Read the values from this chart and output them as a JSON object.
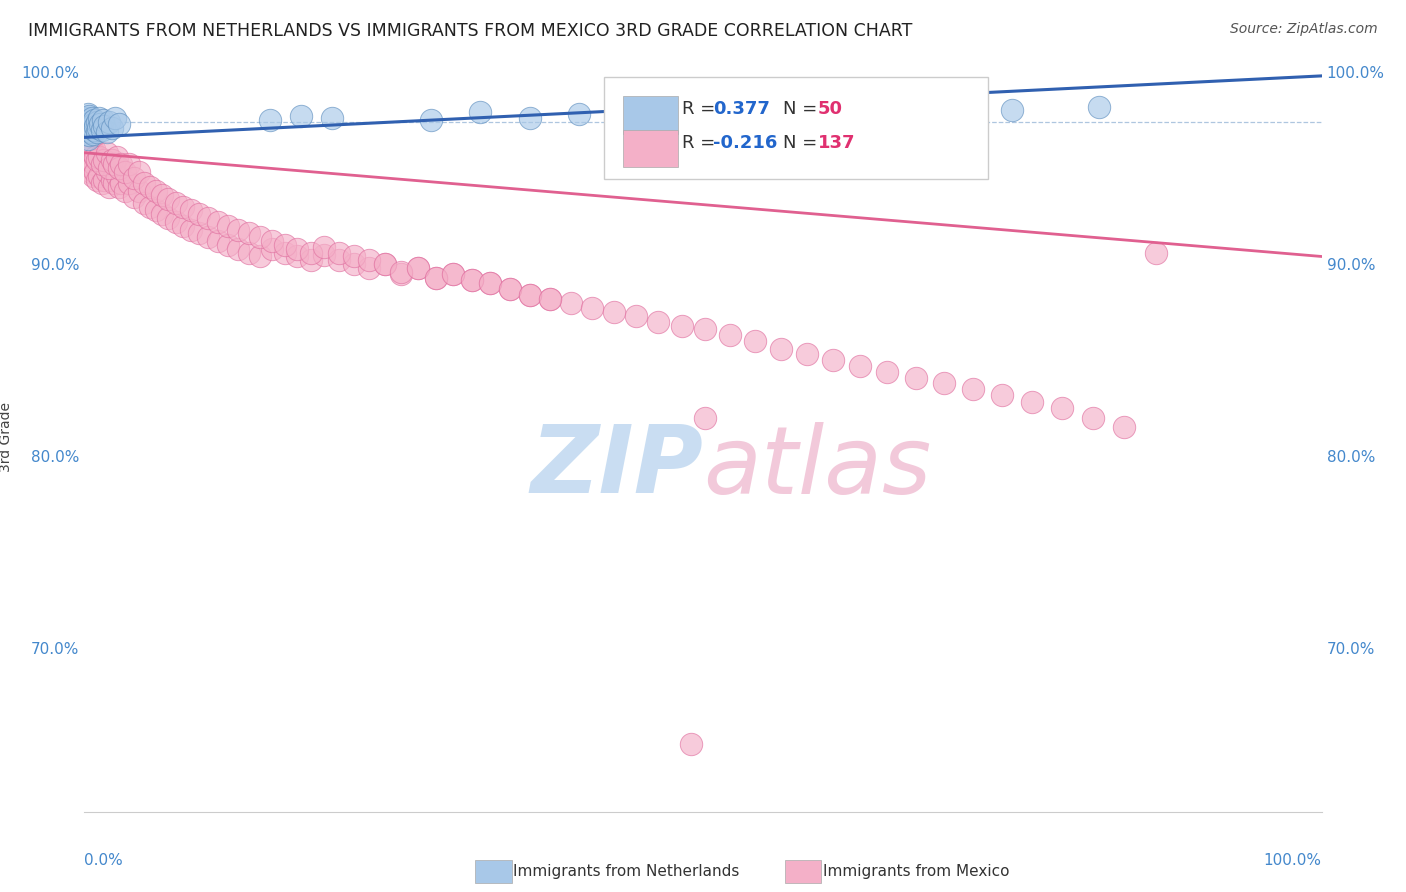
{
  "title": "IMMIGRANTS FROM NETHERLANDS VS IMMIGRANTS FROM MEXICO 3RD GRADE CORRELATION CHART",
  "source": "Source: ZipAtlas.com",
  "ylabel": "3rd Grade",
  "blue_color": "#a8c8e8",
  "pink_color": "#f4b0c8",
  "blue_edge_color": "#6090c0",
  "pink_edge_color": "#e070a0",
  "blue_line_color": "#3060b0",
  "pink_line_color": "#e06090",
  "title_color": "#222222",
  "watermark_zip_color": "#c0d8f0",
  "watermark_atlas_color": "#f0c0d4",
  "tick_color": "#4488cc",
  "xlim": [
    0.0,
    1.0
  ],
  "ylim": [
    0.615,
    1.005
  ],
  "blue_trendline_x": [
    0.0,
    1.0
  ],
  "blue_trendline_y": [
    0.966,
    0.998
  ],
  "pink_trendline_x": [
    0.0,
    1.0
  ],
  "pink_trendline_y": [
    0.958,
    0.904
  ],
  "dashed_line_y": 0.974,
  "blue_scatter_x": [
    0.001,
    0.001,
    0.002,
    0.002,
    0.002,
    0.003,
    0.003,
    0.003,
    0.003,
    0.004,
    0.004,
    0.004,
    0.005,
    0.005,
    0.006,
    0.006,
    0.007,
    0.007,
    0.008,
    0.008,
    0.009,
    0.01,
    0.01,
    0.011,
    0.012,
    0.013,
    0.014,
    0.015,
    0.016,
    0.018,
    0.02,
    0.022,
    0.025,
    0.028,
    0.15,
    0.175,
    0.2,
    0.28,
    0.32,
    0.36,
    0.4,
    0.44,
    0.48,
    0.52,
    0.56,
    0.6,
    0.65,
    0.7,
    0.75,
    0.82
  ],
  "blue_scatter_y": [
    0.97,
    0.975,
    0.968,
    0.972,
    0.976,
    0.965,
    0.97,
    0.974,
    0.978,
    0.967,
    0.972,
    0.977,
    0.969,
    0.974,
    0.971,
    0.976,
    0.968,
    0.973,
    0.97,
    0.975,
    0.972,
    0.969,
    0.974,
    0.971,
    0.976,
    0.973,
    0.97,
    0.975,
    0.972,
    0.969,
    0.974,
    0.971,
    0.976,
    0.973,
    0.975,
    0.977,
    0.976,
    0.975,
    0.979,
    0.976,
    0.978,
    0.977,
    0.98,
    0.978,
    0.976,
    0.979,
    0.98,
    0.981,
    0.98,
    0.982
  ],
  "pink_scatter_x": [
    0.001,
    0.002,
    0.003,
    0.004,
    0.005,
    0.006,
    0.007,
    0.008,
    0.009,
    0.01,
    0.012,
    0.014,
    0.016,
    0.018,
    0.02,
    0.022,
    0.024,
    0.026,
    0.028,
    0.03,
    0.033,
    0.036,
    0.04,
    0.044,
    0.048,
    0.053,
    0.058,
    0.063,
    0.068,
    0.074,
    0.08,
    0.086,
    0.093,
    0.1,
    0.108,
    0.116,
    0.124,
    0.133,
    0.142,
    0.152,
    0.162,
    0.172,
    0.183,
    0.194,
    0.206,
    0.218,
    0.23,
    0.243,
    0.256,
    0.27,
    0.284,
    0.298,
    0.313,
    0.328,
    0.344,
    0.36,
    0.376,
    0.393,
    0.41,
    0.428,
    0.446,
    0.464,
    0.483,
    0.502,
    0.502,
    0.522,
    0.542,
    0.563,
    0.584,
    0.605,
    0.627,
    0.649,
    0.672,
    0.695,
    0.718,
    0.742,
    0.766,
    0.79,
    0.815,
    0.84,
    0.001,
    0.002,
    0.003,
    0.004,
    0.005,
    0.006,
    0.007,
    0.008,
    0.009,
    0.01,
    0.012,
    0.014,
    0.016,
    0.018,
    0.02,
    0.022,
    0.024,
    0.026,
    0.028,
    0.03,
    0.033,
    0.036,
    0.04,
    0.044,
    0.048,
    0.053,
    0.058,
    0.063,
    0.068,
    0.074,
    0.08,
    0.086,
    0.093,
    0.1,
    0.108,
    0.116,
    0.124,
    0.133,
    0.142,
    0.152,
    0.162,
    0.172,
    0.183,
    0.194,
    0.206,
    0.218,
    0.23,
    0.243,
    0.256,
    0.27,
    0.284,
    0.298,
    0.313,
    0.328,
    0.344,
    0.36,
    0.376,
    0.866,
    0.49
  ],
  "pink_scatter_y": [
    0.962,
    0.958,
    0.955,
    0.951,
    0.948,
    0.95,
    0.946,
    0.952,
    0.948,
    0.944,
    0.946,
    0.942,
    0.944,
    0.948,
    0.94,
    0.944,
    0.942,
    0.946,
    0.94,
    0.942,
    0.938,
    0.942,
    0.935,
    0.938,
    0.932,
    0.93,
    0.928,
    0.926,
    0.924,
    0.922,
    0.92,
    0.918,
    0.916,
    0.914,
    0.912,
    0.91,
    0.908,
    0.906,
    0.904,
    0.908,
    0.906,
    0.904,
    0.902,
    0.905,
    0.902,
    0.9,
    0.898,
    0.9,
    0.895,
    0.898,
    0.893,
    0.895,
    0.892,
    0.89,
    0.887,
    0.884,
    0.882,
    0.88,
    0.877,
    0.875,
    0.873,
    0.87,
    0.868,
    0.866,
    0.82,
    0.863,
    0.86,
    0.856,
    0.853,
    0.85,
    0.847,
    0.844,
    0.841,
    0.838,
    0.835,
    0.832,
    0.828,
    0.825,
    0.82,
    0.815,
    0.972,
    0.968,
    0.966,
    0.962,
    0.964,
    0.96,
    0.958,
    0.96,
    0.956,
    0.954,
    0.956,
    0.952,
    0.954,
    0.958,
    0.95,
    0.954,
    0.952,
    0.956,
    0.95,
    0.952,
    0.948,
    0.952,
    0.945,
    0.948,
    0.942,
    0.94,
    0.938,
    0.936,
    0.934,
    0.932,
    0.93,
    0.928,
    0.926,
    0.924,
    0.922,
    0.92,
    0.918,
    0.916,
    0.914,
    0.912,
    0.91,
    0.908,
    0.906,
    0.909,
    0.906,
    0.904,
    0.902,
    0.9,
    0.896,
    0.898,
    0.893,
    0.895,
    0.892,
    0.89,
    0.887,
    0.884,
    0.882,
    0.906,
    0.65
  ],
  "title_fontsize": 12.5,
  "source_fontsize": 10,
  "tick_fontsize": 11,
  "ylabel_fontsize": 10,
  "legend_fontsize": 13
}
